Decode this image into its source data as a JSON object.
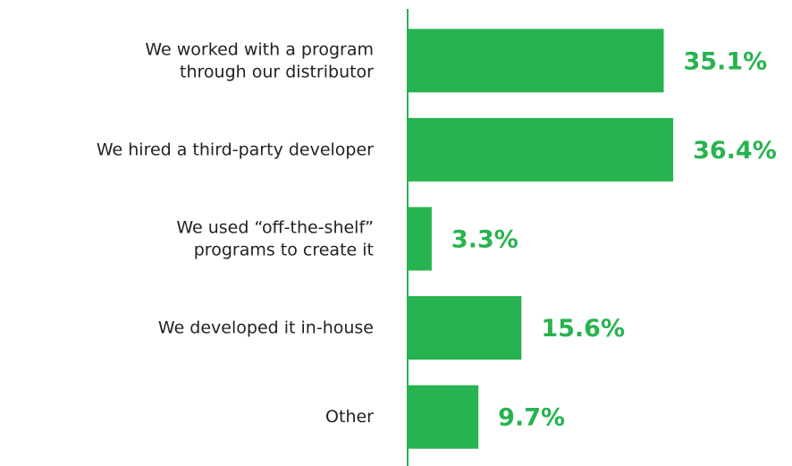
{
  "chart_data": {
    "type": "hbar",
    "categories": [
      [
        "We worked with a program",
        "through our distributor"
      ],
      [
        "We hired a third-party developer"
      ],
      [
        "We used “off-the-shelf”",
        "programs to create it"
      ],
      [
        "We developed it in-house"
      ],
      [
        "Other"
      ]
    ],
    "values": [
      35.1,
      36.4,
      3.3,
      15.6,
      9.7
    ],
    "value_labels": [
      "35.1%",
      "36.4%",
      "3.3%",
      "15.6%",
      "9.7%"
    ],
    "color": "#27b34f",
    "xlim": [
      0,
      37
    ]
  }
}
